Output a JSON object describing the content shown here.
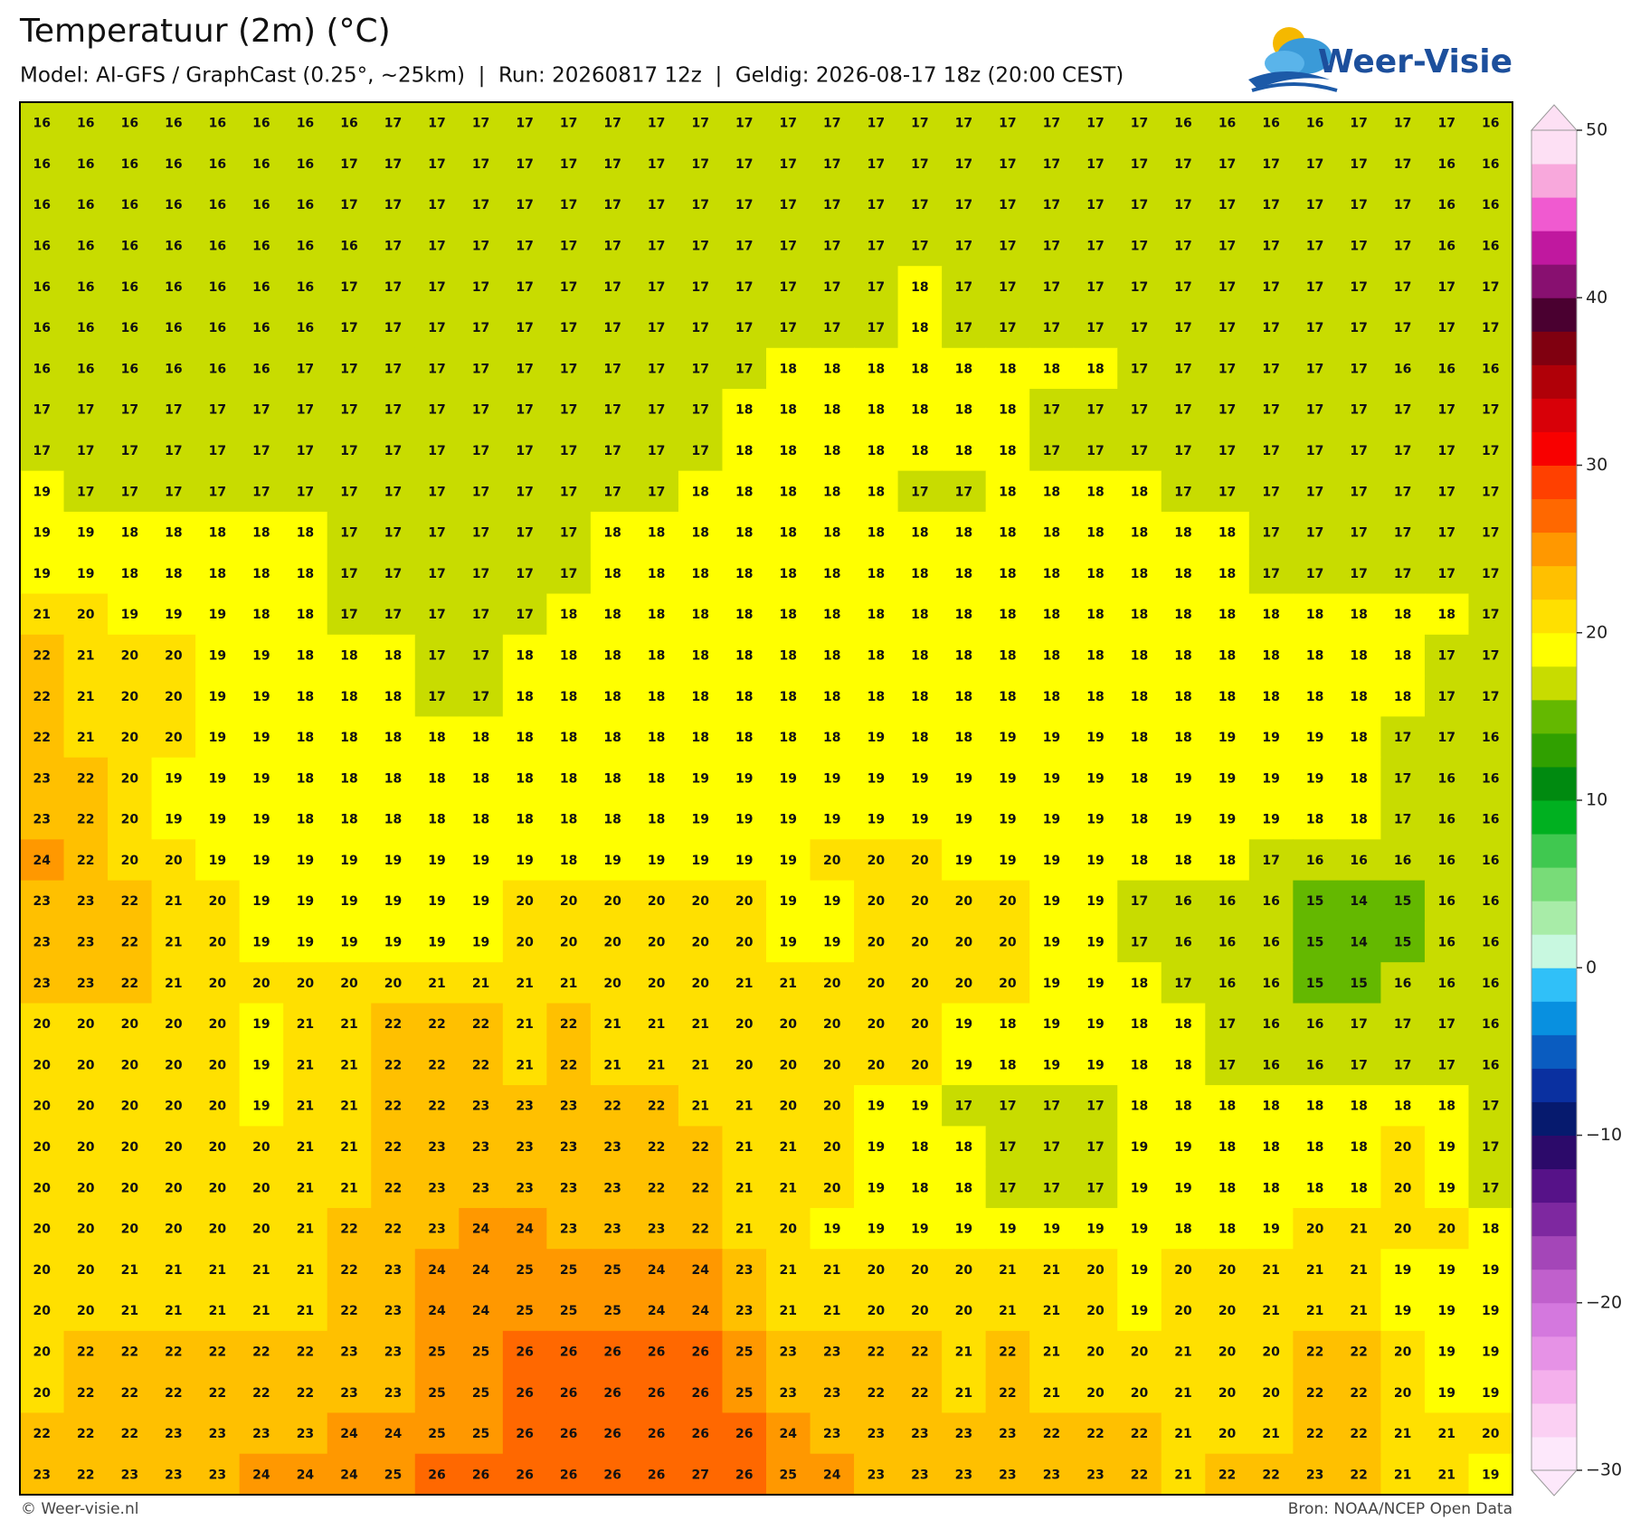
{
  "chart_data": {
    "type": "heatmap",
    "title": "Temperatuur (2m) (°C)",
    "subtitle": "Model: AI-GFS / GraphCast (0.25°, ~25km)  |  Run: 20260817 12z  |  Geldig: 2026-08-17 18z (20:00 CEST)",
    "values": [
      [
        16,
        16,
        16,
        16,
        16,
        16,
        16,
        16,
        17,
        17,
        17,
        17,
        17,
        17,
        17,
        17,
        17,
        17,
        17,
        17,
        17,
        17,
        17,
        17,
        17,
        17,
        16,
        16,
        16,
        16,
        17,
        17,
        17,
        16
      ],
      [
        16,
        16,
        16,
        16,
        16,
        16,
        16,
        17,
        17,
        17,
        17,
        17,
        17,
        17,
        17,
        17,
        17,
        17,
        17,
        17,
        17,
        17,
        17,
        17,
        17,
        17,
        17,
        17,
        17,
        17,
        17,
        17,
        16,
        16
      ],
      [
        16,
        16,
        16,
        16,
        16,
        16,
        16,
        17,
        17,
        17,
        17,
        17,
        17,
        17,
        17,
        17,
        17,
        17,
        17,
        17,
        17,
        17,
        17,
        17,
        17,
        17,
        17,
        17,
        17,
        17,
        17,
        17,
        16,
        16
      ],
      [
        16,
        16,
        16,
        16,
        16,
        16,
        16,
        16,
        17,
        17,
        17,
        17,
        17,
        17,
        17,
        17,
        17,
        17,
        17,
        17,
        17,
        17,
        17,
        17,
        17,
        17,
        17,
        17,
        17,
        17,
        17,
        17,
        16,
        16
      ],
      [
        16,
        16,
        16,
        16,
        16,
        16,
        16,
        17,
        17,
        17,
        17,
        17,
        17,
        17,
        17,
        17,
        17,
        17,
        17,
        17,
        18,
        17,
        17,
        17,
        17,
        17,
        17,
        17,
        17,
        17,
        17,
        17,
        17,
        17
      ],
      [
        16,
        16,
        16,
        16,
        16,
        16,
        16,
        17,
        17,
        17,
        17,
        17,
        17,
        17,
        17,
        17,
        17,
        17,
        17,
        17,
        18,
        17,
        17,
        17,
        17,
        17,
        17,
        17,
        17,
        17,
        17,
        17,
        17,
        17
      ],
      [
        16,
        16,
        16,
        16,
        16,
        16,
        17,
        17,
        17,
        17,
        17,
        17,
        17,
        17,
        17,
        17,
        17,
        18,
        18,
        18,
        18,
        18,
        18,
        18,
        18,
        17,
        17,
        17,
        17,
        17,
        17,
        16,
        16,
        16
      ],
      [
        17,
        17,
        17,
        17,
        17,
        17,
        17,
        17,
        17,
        17,
        17,
        17,
        17,
        17,
        17,
        17,
        18,
        18,
        18,
        18,
        18,
        18,
        18,
        17,
        17,
        17,
        17,
        17,
        17,
        17,
        17,
        17,
        17,
        17
      ],
      [
        17,
        17,
        17,
        17,
        17,
        17,
        17,
        17,
        17,
        17,
        17,
        17,
        17,
        17,
        17,
        17,
        18,
        18,
        18,
        18,
        18,
        18,
        18,
        17,
        17,
        17,
        17,
        17,
        17,
        17,
        17,
        17,
        17,
        17
      ],
      [
        19,
        17,
        17,
        17,
        17,
        17,
        17,
        17,
        17,
        17,
        17,
        17,
        17,
        17,
        17,
        18,
        18,
        18,
        18,
        18,
        17,
        17,
        18,
        18,
        18,
        18,
        17,
        17,
        17,
        17,
        17,
        17,
        17,
        17
      ],
      [
        19,
        19,
        18,
        18,
        18,
        18,
        18,
        17,
        17,
        17,
        17,
        17,
        17,
        18,
        18,
        18,
        18,
        18,
        18,
        18,
        18,
        18,
        18,
        18,
        18,
        18,
        18,
        18,
        17,
        17,
        17,
        17,
        17,
        17
      ],
      [
        19,
        19,
        18,
        18,
        18,
        18,
        18,
        17,
        17,
        17,
        17,
        17,
        17,
        18,
        18,
        18,
        18,
        18,
        18,
        18,
        18,
        18,
        18,
        18,
        18,
        18,
        18,
        18,
        17,
        17,
        17,
        17,
        17,
        17
      ],
      [
        21,
        20,
        19,
        19,
        19,
        18,
        18,
        17,
        17,
        17,
        17,
        17,
        18,
        18,
        18,
        18,
        18,
        18,
        18,
        18,
        18,
        18,
        18,
        18,
        18,
        18,
        18,
        18,
        18,
        18,
        18,
        18,
        18,
        17
      ],
      [
        22,
        21,
        20,
        20,
        19,
        19,
        18,
        18,
        18,
        17,
        17,
        18,
        18,
        18,
        18,
        18,
        18,
        18,
        18,
        18,
        18,
        18,
        18,
        18,
        18,
        18,
        18,
        18,
        18,
        18,
        18,
        18,
        17,
        17
      ],
      [
        22,
        21,
        20,
        20,
        19,
        19,
        18,
        18,
        18,
        17,
        17,
        18,
        18,
        18,
        18,
        18,
        18,
        18,
        18,
        18,
        18,
        18,
        18,
        18,
        18,
        18,
        18,
        18,
        18,
        18,
        18,
        18,
        17,
        17
      ],
      [
        22,
        21,
        20,
        20,
        19,
        19,
        18,
        18,
        18,
        18,
        18,
        18,
        18,
        18,
        18,
        18,
        18,
        18,
        18,
        19,
        18,
        18,
        19,
        19,
        19,
        18,
        18,
        19,
        19,
        19,
        18,
        17,
        17,
        16
      ],
      [
        23,
        22,
        20,
        19,
        19,
        19,
        18,
        18,
        18,
        18,
        18,
        18,
        18,
        18,
        18,
        19,
        19,
        19,
        19,
        19,
        19,
        19,
        19,
        19,
        19,
        18,
        19,
        19,
        19,
        19,
        18,
        17,
        16,
        16
      ],
      [
        23,
        22,
        20,
        19,
        19,
        19,
        18,
        18,
        18,
        18,
        18,
        18,
        18,
        18,
        18,
        19,
        19,
        19,
        19,
        19,
        19,
        19,
        19,
        19,
        19,
        18,
        19,
        19,
        19,
        18,
        18,
        17,
        16,
        16
      ],
      [
        24,
        22,
        20,
        20,
        19,
        19,
        19,
        19,
        19,
        19,
        19,
        19,
        18,
        19,
        19,
        19,
        19,
        19,
        20,
        20,
        20,
        19,
        19,
        19,
        19,
        18,
        18,
        18,
        17,
        16,
        16,
        16,
        16,
        16
      ],
      [
        23,
        23,
        22,
        21,
        20,
        19,
        19,
        19,
        19,
        19,
        19,
        20,
        20,
        20,
        20,
        20,
        20,
        19,
        19,
        20,
        20,
        20,
        20,
        19,
        19,
        17,
        16,
        16,
        16,
        15,
        14,
        15,
        16,
        16
      ],
      [
        23,
        23,
        22,
        21,
        20,
        19,
        19,
        19,
        19,
        19,
        19,
        20,
        20,
        20,
        20,
        20,
        20,
        19,
        19,
        20,
        20,
        20,
        20,
        19,
        19,
        17,
        16,
        16,
        16,
        15,
        14,
        15,
        16,
        16
      ],
      [
        23,
        23,
        22,
        21,
        20,
        20,
        20,
        20,
        20,
        21,
        21,
        21,
        21,
        20,
        20,
        20,
        21,
        21,
        20,
        20,
        20,
        20,
        20,
        19,
        19,
        18,
        17,
        16,
        16,
        15,
        15,
        16,
        16,
        16
      ],
      [
        20,
        20,
        20,
        20,
        20,
        19,
        21,
        21,
        22,
        22,
        22,
        21,
        22,
        21,
        21,
        21,
        20,
        20,
        20,
        20,
        20,
        19,
        18,
        19,
        19,
        18,
        18,
        17,
        16,
        16,
        17,
        17,
        17,
        16
      ],
      [
        20,
        20,
        20,
        20,
        20,
        19,
        21,
        21,
        22,
        22,
        22,
        21,
        22,
        21,
        21,
        21,
        20,
        20,
        20,
        20,
        20,
        19,
        18,
        19,
        19,
        18,
        18,
        17,
        16,
        16,
        17,
        17,
        17,
        16
      ],
      [
        20,
        20,
        20,
        20,
        20,
        19,
        21,
        21,
        22,
        22,
        23,
        23,
        23,
        22,
        22,
        21,
        21,
        20,
        20,
        19,
        19,
        17,
        17,
        17,
        17,
        18,
        18,
        18,
        18,
        18,
        18,
        18,
        18,
        17
      ],
      [
        20,
        20,
        20,
        20,
        20,
        20,
        21,
        21,
        22,
        23,
        23,
        23,
        23,
        23,
        22,
        22,
        21,
        21,
        20,
        19,
        18,
        18,
        17,
        17,
        17,
        19,
        19,
        18,
        18,
        18,
        18,
        20,
        19,
        17
      ],
      [
        20,
        20,
        20,
        20,
        20,
        20,
        21,
        21,
        22,
        23,
        23,
        23,
        23,
        23,
        22,
        22,
        21,
        21,
        20,
        19,
        18,
        18,
        17,
        17,
        17,
        19,
        19,
        18,
        18,
        18,
        18,
        20,
        19,
        17
      ],
      [
        20,
        20,
        20,
        20,
        20,
        20,
        21,
        22,
        22,
        23,
        24,
        24,
        23,
        23,
        23,
        22,
        21,
        20,
        19,
        19,
        19,
        19,
        19,
        19,
        19,
        19,
        18,
        18,
        19,
        20,
        21,
        20,
        20,
        18
      ],
      [
        20,
        20,
        21,
        21,
        21,
        21,
        21,
        22,
        23,
        24,
        24,
        25,
        25,
        25,
        24,
        24,
        23,
        21,
        21,
        20,
        20,
        20,
        21,
        21,
        20,
        19,
        20,
        20,
        21,
        21,
        21,
        19,
        19,
        19
      ],
      [
        20,
        20,
        21,
        21,
        21,
        21,
        21,
        22,
        23,
        24,
        24,
        25,
        25,
        25,
        24,
        24,
        23,
        21,
        21,
        20,
        20,
        20,
        21,
        21,
        20,
        19,
        20,
        20,
        21,
        21,
        21,
        19,
        19,
        19
      ],
      [
        20,
        22,
        22,
        22,
        22,
        22,
        22,
        23,
        23,
        25,
        25,
        26,
        26,
        26,
        26,
        26,
        25,
        23,
        23,
        22,
        22,
        21,
        22,
        21,
        20,
        20,
        21,
        20,
        20,
        22,
        22,
        20,
        19,
        19
      ],
      [
        20,
        22,
        22,
        22,
        22,
        22,
        22,
        23,
        23,
        25,
        25,
        26,
        26,
        26,
        26,
        26,
        25,
        23,
        23,
        22,
        22,
        21,
        22,
        21,
        20,
        20,
        21,
        20,
        20,
        22,
        22,
        20,
        19,
        19
      ],
      [
        22,
        22,
        22,
        23,
        23,
        23,
        23,
        24,
        24,
        25,
        25,
        26,
        26,
        26,
        26,
        26,
        26,
        24,
        23,
        23,
        23,
        23,
        23,
        22,
        22,
        22,
        21,
        20,
        21,
        22,
        22,
        21,
        21,
        20
      ],
      [
        23,
        22,
        23,
        23,
        23,
        24,
        24,
        24,
        25,
        26,
        26,
        26,
        26,
        26,
        26,
        27,
        26,
        25,
        24,
        23,
        23,
        23,
        23,
        23,
        23,
        22,
        21,
        22,
        22,
        23,
        22,
        21,
        21,
        19
      ]
    ],
    "colorbar": {
      "lim": [
        -30,
        50
      ],
      "ticks": [
        {
          "value": -30,
          "label": "−30"
        },
        {
          "value": -20,
          "label": "−20"
        },
        {
          "value": -10,
          "label": "−10"
        },
        0,
        10,
        20,
        30,
        40,
        50
      ],
      "colors": [
        "#fde8fb",
        "#fbd0f3",
        "#f4b0ec",
        "#e692e6",
        "#d478de",
        "#c060cc",
        "#a446b8",
        "#7e28a0",
        "#561288",
        "#2c0a6a",
        "#061a6e",
        "#0a30a0",
        "#0a5cc0",
        "#0890e0",
        "#30c0f8",
        "#c8f8e0",
        "#a8eca8",
        "#78dc78",
        "#40c850",
        "#00b020",
        "#008a10",
        "#30a000",
        "#64b800",
        "#c8dc00",
        "#ffff00",
        "#ffe000",
        "#ffc000",
        "#ff9800",
        "#ff6800",
        "#ff4000",
        "#f80000",
        "#d80008",
        "#b00008",
        "#800010",
        "#4a0030",
        "#881070",
        "#c0189f",
        "#f05ad0",
        "#f8a8dc",
        "#fde0f4"
      ]
    }
  },
  "logo": "Weer-Visie",
  "footer": {
    "left": "© Weer-visie.nl",
    "right": "Bron: NOAA/NCEP Open Data"
  }
}
